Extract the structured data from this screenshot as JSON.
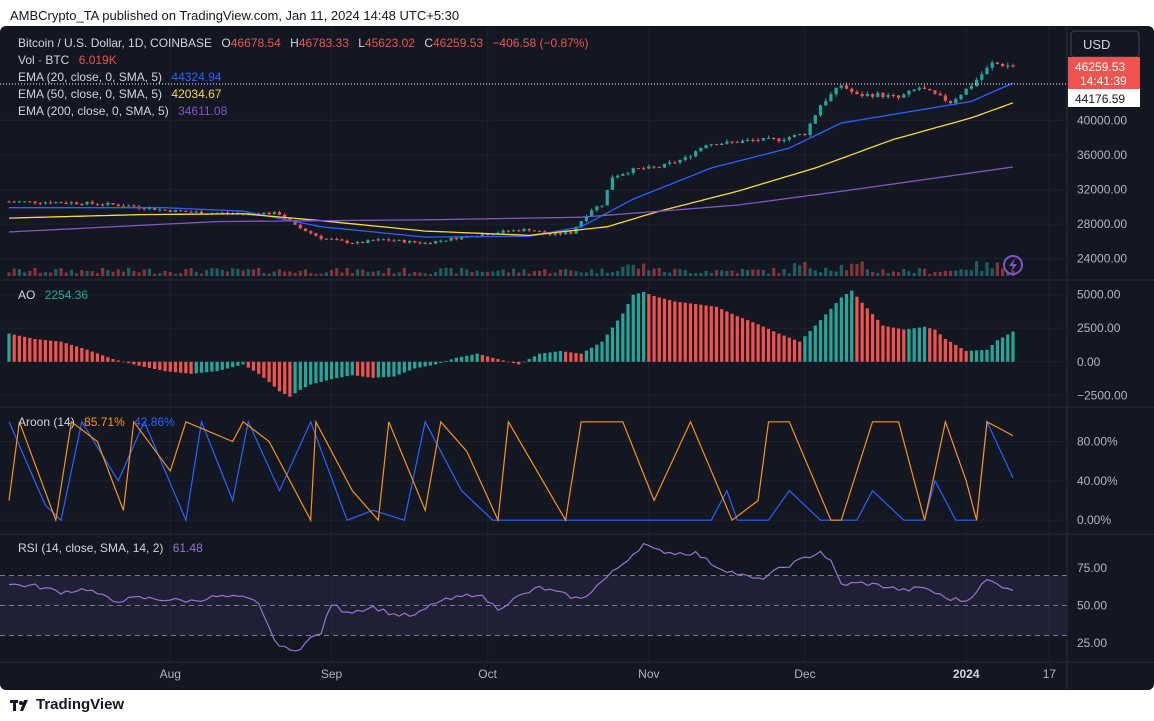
{
  "header": {
    "publisher_line": "AMBCrypto_TA published on TradingView.com, Jan 11, 2024 14:48 UTC+5:30"
  },
  "brand": {
    "name": "TradingView"
  },
  "price_axis": {
    "currency": "USD",
    "last_price": "46259.53",
    "countdown": "14:41:39",
    "ema20_tag": "44176.59"
  },
  "legend": {
    "symbol": "Bitcoin / U.S. Dollar, 1D, COINBASE",
    "o_label": "O",
    "o_value": "46678.54",
    "h_label": "H",
    "h_value": "46783.33",
    "l_label": "L",
    "l_value": "45623.02",
    "c_label": "C",
    "c_value": "46259.53",
    "change": "−406.58 (−0.87%)",
    "vol_label": "Vol · BTC",
    "vol_value": "6.019K",
    "ema20_label": "EMA (20, close, 0, SMA, 5)",
    "ema20_value": "44324.94",
    "ema50_label": "EMA (50, close, 0, SMA, 5)",
    "ema50_value": "42034.67",
    "ema200_label": "EMA (200, close, 0, SMA, 5)",
    "ema200_value": "34611.08",
    "ao_label": "AO",
    "ao_value": "2254.36",
    "aroon_label": "Aroon (14)",
    "aroon_up": "85.71%",
    "aroon_down": "42.86%",
    "rsi_label": "RSI (14, close, SMA, 14, 2)",
    "rsi_value": "61.48"
  },
  "colors": {
    "background": "#131722",
    "up": "#26a69a",
    "down": "#ef5350",
    "ema20": "#2962ff",
    "ema50": "#f9d937",
    "ema200": "#7e57c2",
    "aroon_up": "#f7931a",
    "aroon_down": "#2962ff",
    "rsi": "#9575cd",
    "text": "#b2b5be"
  },
  "chart_data": [
    {
      "type": "candlestick",
      "ylim": [
        22000,
        50000
      ],
      "yticks": [
        "24000.00",
        "28000.00",
        "32000.00",
        "36000.00",
        "40000.00"
      ],
      "ytick_values": [
        24000,
        28000,
        32000,
        36000,
        40000
      ],
      "xticks": [
        "Aug",
        "Sep",
        "Oct",
        "Nov",
        "Dec",
        "2024",
        "17"
      ],
      "xtick_days": [
        31,
        62,
        92,
        123,
        153,
        184,
        200
      ],
      "start_date": "2023-07-01",
      "close_points": [
        [
          0,
          30600
        ],
        [
          12,
          30500
        ],
        [
          22,
          30200
        ],
        [
          30,
          29600
        ],
        [
          38,
          29300
        ],
        [
          46,
          29200
        ],
        [
          48,
          29300
        ],
        [
          52,
          29200
        ],
        [
          55,
          27800
        ],
        [
          60,
          26400
        ],
        [
          64,
          26000
        ],
        [
          67,
          25800
        ],
        [
          70,
          26100
        ],
        [
          72,
          26200
        ],
        [
          76,
          26000
        ],
        [
          80,
          25800
        ],
        [
          84,
          26200
        ],
        [
          88,
          26600
        ],
        [
          92,
          26900
        ],
        [
          96,
          27200
        ],
        [
          100,
          27400
        ],
        [
          104,
          26800
        ],
        [
          108,
          27000
        ],
        [
          110,
          28400
        ],
        [
          112,
          29700
        ],
        [
          114,
          30300
        ],
        [
          116,
          33500
        ],
        [
          120,
          34300
        ],
        [
          125,
          34600
        ],
        [
          130,
          35600
        ],
        [
          134,
          37300
        ],
        [
          138,
          37400
        ],
        [
          143,
          37700
        ],
        [
          148,
          37800
        ],
        [
          153,
          38500
        ],
        [
          156,
          41800
        ],
        [
          160,
          44100
        ],
        [
          163,
          42900
        ],
        [
          167,
          43000
        ],
        [
          171,
          42600
        ],
        [
          175,
          43800
        ],
        [
          181,
          42100
        ],
        [
          185,
          44100
        ],
        [
          189,
          46600
        ],
        [
          193,
          46259
        ]
      ],
      "volume_scale": 2.3,
      "volume_ylim": [
        0,
        10
      ],
      "ema_series": [
        {
          "period": 20,
          "values": [
            [
              0,
              29900
            ],
            [
              30,
              29900
            ],
            [
              45,
              29500
            ],
            [
              60,
              27700
            ],
            [
              80,
              26500
            ],
            [
              100,
              26600
            ],
            [
              110,
              27700
            ],
            [
              120,
              30900
            ],
            [
              135,
              34500
            ],
            [
              150,
              36800
            ],
            [
              160,
              39700
            ],
            [
              175,
              41200
            ],
            [
              185,
              42200
            ],
            [
              193,
              44324
            ]
          ]
        },
        {
          "period": 50,
          "values": [
            [
              0,
              28700
            ],
            [
              25,
              29100
            ],
            [
              45,
              29200
            ],
            [
              60,
              28400
            ],
            [
              80,
              27200
            ],
            [
              100,
              26700
            ],
            [
              115,
              27700
            ],
            [
              125,
              29500
            ],
            [
              140,
              31800
            ],
            [
              155,
              34500
            ],
            [
              170,
              37800
            ],
            [
              185,
              40300
            ],
            [
              193,
              42034
            ]
          ]
        },
        {
          "period": 200,
          "values": [
            [
              0,
              27100
            ],
            [
              40,
              28300
            ],
            [
              80,
              28500
            ],
            [
              110,
              28800
            ],
            [
              140,
              30200
            ],
            [
              160,
              31800
            ],
            [
              180,
              33500
            ],
            [
              193,
              34611
            ]
          ]
        }
      ]
    },
    {
      "type": "bar",
      "name": "AO",
      "ylim": [
        -3000,
        5500
      ],
      "yticks": [
        "5000.00",
        "2500.00",
        "0.00",
        "−2500.00"
      ],
      "ytick_values": [
        5000,
        2500,
        0,
        -2500
      ],
      "points": [
        [
          0,
          2100
        ],
        [
          5,
          1700
        ],
        [
          10,
          1500
        ],
        [
          15,
          900
        ],
        [
          20,
          200
        ],
        [
          25,
          -300
        ],
        [
          30,
          -700
        ],
        [
          35,
          -900
        ],
        [
          40,
          -700
        ],
        [
          45,
          -200
        ],
        [
          48,
          -900
        ],
        [
          50,
          -1500
        ],
        [
          52,
          -2200
        ],
        [
          54,
          -2600
        ],
        [
          56,
          -2100
        ],
        [
          58,
          -1700
        ],
        [
          62,
          -1300
        ],
        [
          66,
          -1000
        ],
        [
          70,
          -1200
        ],
        [
          74,
          -1100
        ],
        [
          78,
          -500
        ],
        [
          82,
          -200
        ],
        [
          86,
          300
        ],
        [
          90,
          600
        ],
        [
          94,
          200
        ],
        [
          98,
          -200
        ],
        [
          102,
          600
        ],
        [
          106,
          800
        ],
        [
          110,
          600
        ],
        [
          114,
          1500
        ],
        [
          118,
          3600
        ],
        [
          120,
          5000
        ],
        [
          122,
          5200
        ],
        [
          124,
          4900
        ],
        [
          128,
          4500
        ],
        [
          132,
          4300
        ],
        [
          136,
          4100
        ],
        [
          140,
          3400
        ],
        [
          144,
          2800
        ],
        [
          148,
          2100
        ],
        [
          152,
          1500
        ],
        [
          156,
          3100
        ],
        [
          160,
          4800
        ],
        [
          162,
          5300
        ],
        [
          164,
          4400
        ],
        [
          168,
          2700
        ],
        [
          172,
          2400
        ],
        [
          176,
          2600
        ],
        [
          178,
          2400
        ],
        [
          180,
          1700
        ],
        [
          184,
          800
        ],
        [
          188,
          900
        ],
        [
          190,
          1600
        ],
        [
          193,
          2254
        ]
      ]
    },
    {
      "type": "line",
      "name": "Aroon (14)",
      "ylim": [
        -10,
        110
      ],
      "yticks": [
        "80.00%",
        "40.00%",
        "0.00%"
      ],
      "ytick_values": [
        80,
        40,
        0
      ],
      "up": [
        [
          0,
          20
        ],
        [
          2,
          100
        ],
        [
          9,
          0
        ],
        [
          12,
          100
        ],
        [
          17,
          80
        ],
        [
          22,
          10
        ],
        [
          24,
          100
        ],
        [
          31,
          50
        ],
        [
          34,
          100
        ],
        [
          43,
          80
        ],
        [
          45,
          100
        ],
        [
          50,
          80
        ],
        [
          58,
          0
        ],
        [
          59,
          100
        ],
        [
          66,
          30
        ],
        [
          71,
          0
        ],
        [
          73,
          100
        ],
        [
          80,
          10
        ],
        [
          83,
          100
        ],
        [
          88,
          70
        ],
        [
          94,
          0
        ],
        [
          96,
          100
        ],
        [
          107,
          0
        ],
        [
          110,
          100
        ],
        [
          118,
          100
        ],
        [
          124,
          20
        ],
        [
          131,
          100
        ],
        [
          139,
          0
        ],
        [
          144,
          20
        ],
        [
          146,
          100
        ],
        [
          150,
          100
        ],
        [
          158,
          0
        ],
        [
          160,
          0
        ],
        [
          166,
          100
        ],
        [
          171,
          100
        ],
        [
          176,
          0
        ],
        [
          180,
          100
        ],
        [
          184,
          40
        ],
        [
          186,
          0
        ],
        [
          188,
          100
        ],
        [
          193,
          86
        ]
      ],
      "down": [
        [
          0,
          100
        ],
        [
          7,
          15
        ],
        [
          10,
          0
        ],
        [
          14,
          100
        ],
        [
          21,
          40
        ],
        [
          26,
          100
        ],
        [
          34,
          0
        ],
        [
          37,
          100
        ],
        [
          43,
          20
        ],
        [
          46,
          100
        ],
        [
          52,
          30
        ],
        [
          58,
          100
        ],
        [
          65,
          0
        ],
        [
          70,
          10
        ],
        [
          76,
          0
        ],
        [
          80,
          100
        ],
        [
          87,
          30
        ],
        [
          93,
          0
        ],
        [
          98,
          0
        ],
        [
          103,
          0
        ],
        [
          110,
          0
        ],
        [
          118,
          0
        ],
        [
          124,
          0
        ],
        [
          130,
          0
        ],
        [
          135,
          0
        ],
        [
          138,
          30
        ],
        [
          140,
          0
        ],
        [
          146,
          0
        ],
        [
          150,
          30
        ],
        [
          156,
          0
        ],
        [
          163,
          0
        ],
        [
          166,
          30
        ],
        [
          172,
          0
        ],
        [
          176,
          0
        ],
        [
          178,
          40
        ],
        [
          182,
          0
        ],
        [
          186,
          0
        ],
        [
          188,
          100
        ],
        [
          193,
          43
        ]
      ]
    },
    {
      "type": "line",
      "name": "RSI (14, close, SMA, 14, 2)",
      "ylim": [
        15,
        95
      ],
      "yticks": [
        "75.00",
        "50.00",
        "25.00"
      ],
      "ytick_values": [
        75,
        50,
        25
      ],
      "bands": [
        70,
        50,
        30
      ],
      "values": [
        [
          0,
          64
        ],
        [
          5,
          63
        ],
        [
          10,
          59
        ],
        [
          15,
          61
        ],
        [
          20,
          53
        ],
        [
          25,
          55
        ],
        [
          30,
          54
        ],
        [
          35,
          53
        ],
        [
          40,
          56
        ],
        [
          45,
          55
        ],
        [
          48,
          52
        ],
        [
          50,
          34
        ],
        [
          52,
          23
        ],
        [
          54,
          20
        ],
        [
          56,
          22
        ],
        [
          58,
          28
        ],
        [
          60,
          32
        ],
        [
          62,
          51
        ],
        [
          64,
          47
        ],
        [
          66,
          46
        ],
        [
          70,
          49
        ],
        [
          74,
          44
        ],
        [
          78,
          43
        ],
        [
          82,
          52
        ],
        [
          86,
          55
        ],
        [
          90,
          58
        ],
        [
          94,
          48
        ],
        [
          98,
          56
        ],
        [
          102,
          62
        ],
        [
          106,
          58
        ],
        [
          110,
          54
        ],
        [
          114,
          66
        ],
        [
          118,
          78
        ],
        [
          122,
          91
        ],
        [
          124,
          87
        ],
        [
          128,
          85
        ],
        [
          132,
          85
        ],
        [
          136,
          76
        ],
        [
          140,
          71
        ],
        [
          144,
          67
        ],
        [
          148,
          74
        ],
        [
          152,
          80
        ],
        [
          156,
          86
        ],
        [
          158,
          79
        ],
        [
          160,
          64
        ],
        [
          164,
          65
        ],
        [
          168,
          63
        ],
        [
          172,
          60
        ],
        [
          176,
          62
        ],
        [
          180,
          55
        ],
        [
          184,
          53
        ],
        [
          188,
          67
        ],
        [
          190,
          64
        ],
        [
          193,
          61
        ]
      ]
    }
  ]
}
